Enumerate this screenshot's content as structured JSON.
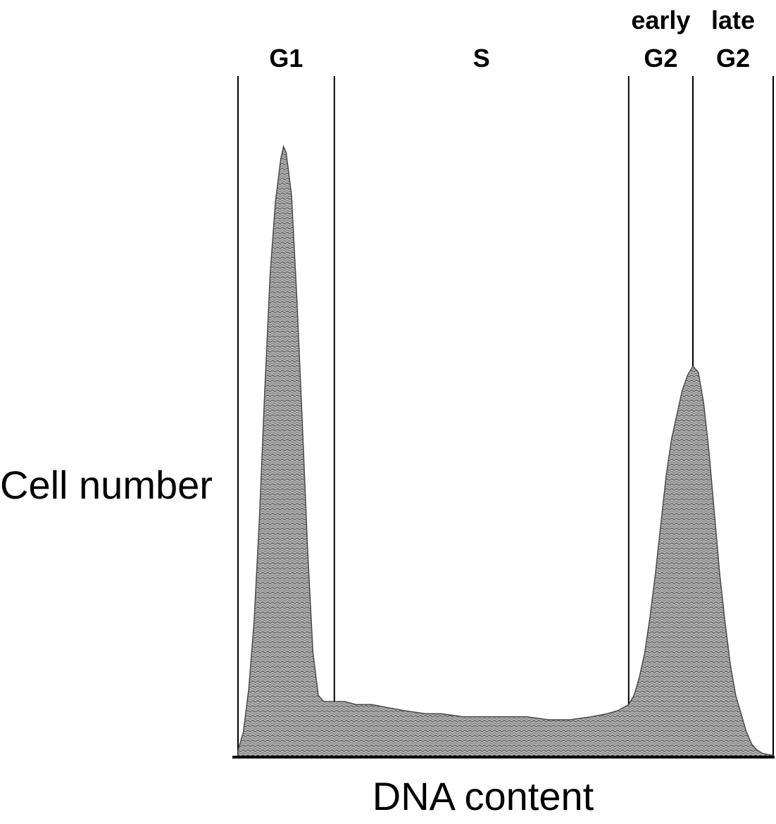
{
  "chart_data": {
    "type": "area",
    "xlabel": "DNA content",
    "ylabel": "Cell number",
    "xlim": [
      0,
      100
    ],
    "ylim": [
      0,
      100
    ],
    "grid": false,
    "fill_color": "#a9a9a9",
    "edge_color": "#4a4a4a",
    "phases": [
      {
        "label_lines": [
          "G1"
        ],
        "start": 0,
        "end": 18
      },
      {
        "label_lines": [
          "S"
        ],
        "start": 18,
        "end": 73
      },
      {
        "label_lines": [
          "early",
          "G2"
        ],
        "start": 73,
        "end": 85
      },
      {
        "label_lines": [
          "late",
          "G2"
        ],
        "start": 85,
        "end": 100
      }
    ],
    "series": [
      {
        "x": [
          0,
          1,
          2,
          3,
          4,
          5,
          6,
          7,
          8,
          8.5,
          9,
          10,
          11,
          12,
          13,
          14,
          15,
          16,
          17,
          18,
          20,
          22,
          25,
          28,
          31,
          35,
          38,
          42,
          46,
          50,
          54,
          58,
          62,
          66,
          69,
          71,
          73,
          74,
          75,
          76,
          77,
          78,
          79,
          80,
          81,
          82,
          83,
          84,
          85,
          86,
          87,
          88,
          89,
          90,
          91,
          92,
          93,
          94,
          95,
          96,
          97,
          98,
          99,
          100
        ],
        "y": [
          1,
          4,
          11,
          22,
          39,
          60,
          79,
          91,
          98,
          100,
          99,
          92,
          75,
          55,
          34,
          17,
          10,
          9,
          9,
          9,
          9,
          8.5,
          8.5,
          8,
          7.5,
          7,
          7,
          6.5,
          6.5,
          6.5,
          6.5,
          6,
          6,
          6.5,
          7,
          7.5,
          8.5,
          10,
          13,
          17,
          23,
          30,
          38,
          46,
          52,
          56,
          60,
          62.5,
          64,
          63,
          58,
          50,
          40,
          30,
          22,
          15,
          10,
          7,
          4,
          2,
          1,
          0.5,
          0.3,
          0.2
        ]
      }
    ]
  }
}
